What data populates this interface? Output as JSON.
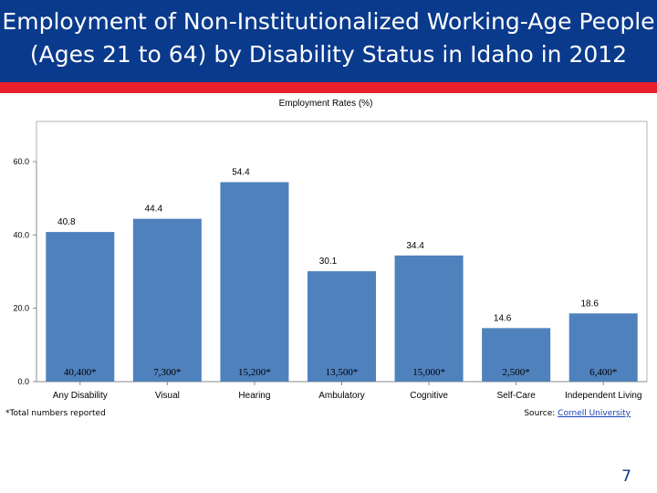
{
  "slide": {
    "title": "Employment of Non-Institutionalized Working-Age People\n(Ages 21 to 64) by Disability Status in Idaho in 2012",
    "footnote": "*Total numbers reported",
    "source_prefix": "Source: ",
    "source_link": "Cornell University",
    "page_number": "7",
    "colors": {
      "header": "#0a3a8c",
      "accent": "#e8202e",
      "bar": "#4f81bd"
    }
  },
  "chart_data": {
    "type": "bar",
    "title": "Employment Rates (%)",
    "categories": [
      "Any Disability",
      "Visual",
      "Hearing",
      "Ambulatory",
      "Cognitive",
      "Self-Care",
      "Independent Living"
    ],
    "values": [
      40.8,
      44.4,
      54.4,
      30.1,
      34.4,
      14.6,
      18.6
    ],
    "value_labels": [
      "40.8",
      "44.4",
      "54.4",
      "30.1",
      "34.4",
      "14.6",
      "18.6"
    ],
    "totals": [
      "40,400*",
      "7,300*",
      "15,200*",
      "13,500*",
      "15,000*",
      "2,500*",
      "6,400*"
    ],
    "yticks": [
      "0.0",
      "20.0",
      "40.0",
      "60.0"
    ],
    "ylim": [
      0,
      60
    ],
    "grid": false,
    "legend": false
  }
}
